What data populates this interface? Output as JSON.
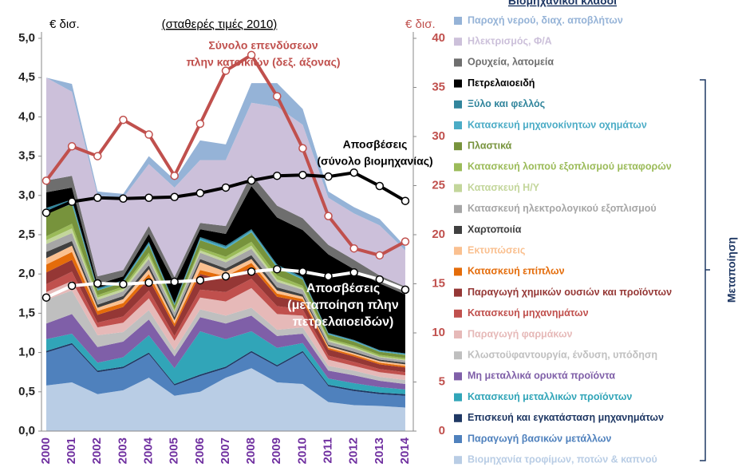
{
  "chart_data": {
    "type": "stacked-area",
    "legend_title": "Βιομηχανικοί κλάδοι",
    "subtitle": "(σταθερές τιμές 2010)",
    "y_label": "€ δισ.",
    "y2_label": "€ δισ.",
    "bracket_label": "Μεταποίηση",
    "categories": [
      "2000",
      "2001",
      "2002",
      "2003",
      "2004",
      "2005",
      "2006",
      "2007",
      "2008",
      "2009",
      "2010",
      "2011",
      "2012",
      "2013",
      "2014"
    ],
    "ylim": [
      0,
      5
    ],
    "yticks": [
      {
        "value": 0,
        "label": "0,0"
      },
      {
        "value": 0.5,
        "label": "0,5"
      },
      {
        "value": 1,
        "label": "1,0"
      },
      {
        "value": 1.5,
        "label": "1,5"
      },
      {
        "value": 2,
        "label": "2,0"
      },
      {
        "value": 2.5,
        "label": "2,5"
      },
      {
        "value": 3,
        "label": "3,0"
      },
      {
        "value": 3.5,
        "label": "3,5"
      },
      {
        "value": 4,
        "label": "4,0"
      },
      {
        "value": 4.5,
        "label": "4,5"
      },
      {
        "value": 5,
        "label": "5,0"
      }
    ],
    "y2lim": [
      0,
      40
    ],
    "y2ticks": [
      0,
      5,
      10,
      15,
      20,
      25,
      30,
      35,
      40
    ],
    "series": [
      {
        "name": "Παροχή νερού, διαχ. αποβλήτων",
        "color": "#95b3d7",
        "values": [
          0.0,
          0.1,
          0.05,
          0.05,
          0.1,
          0.1,
          0.25,
          0.2,
          0.25,
          0.3,
          0.2,
          0.08,
          0.08,
          0.08,
          0.05
        ]
      },
      {
        "name": "Ηλεκτρισμός, Φ/Α",
        "color": "#ccc0da",
        "values": [
          1.31,
          1.07,
          1.03,
          0.92,
          0.79,
          1.14,
          0.8,
          0.84,
          0.91,
          1.26,
          1.19,
          0.6,
          0.59,
          0.64,
          0.46
        ]
      },
      {
        "name": "Ορυχεία, λατομεία",
        "color": "#6e6e6e",
        "values": [
          0.15,
          0.15,
          0.1,
          0.08,
          0.1,
          0.08,
          0.08,
          0.1,
          0.15,
          0.15,
          0.15,
          0.12,
          0.12,
          0.1,
          0.1
        ]
      },
      {
        "name": "Πετρελαιοειδή",
        "color": "#000000",
        "values": [
          0.2,
          0.15,
          0.05,
          0.05,
          0.1,
          0.25,
          0.1,
          0.15,
          0.55,
          0.6,
          0.6,
          1.0,
          0.9,
          0.85,
          0.75
        ]
      },
      {
        "name": "Ξύλο και φελλός",
        "color": "#31859c",
        "values": [
          0.03,
          0.03,
          0.02,
          0.02,
          0.02,
          0.02,
          0.02,
          0.02,
          0.02,
          0.02,
          0.02,
          0.01,
          0.01,
          0.01,
          0.01
        ]
      },
      {
        "name": "Κατασκευή μηχανοκίνητων οχημάτων",
        "color": "#4bacc6",
        "values": [
          0.03,
          0.03,
          0.01,
          0.01,
          0.02,
          0.01,
          0.02,
          0.02,
          0.02,
          0.02,
          0.01,
          0.01,
          0.01,
          0.01,
          0.01
        ]
      },
      {
        "name": "Πλαστικά",
        "color": "#77933c",
        "values": [
          0.3,
          0.25,
          0.06,
          0.05,
          0.1,
          0.05,
          0.1,
          0.1,
          0.12,
          0.1,
          0.08,
          0.05,
          0.05,
          0.04,
          0.04
        ]
      },
      {
        "name": "Κατασκευή λοιπού εξοπλισμού μεταφορών",
        "color": "#9bbb59",
        "values": [
          0.05,
          0.06,
          0.03,
          0.03,
          0.04,
          0.02,
          0.03,
          0.04,
          0.05,
          0.05,
          0.03,
          0.02,
          0.02,
          0.02,
          0.02
        ]
      },
      {
        "name": "Κατασκευή Η/Υ",
        "color": "#c3d69b",
        "values": [
          0.05,
          0.06,
          0.03,
          0.03,
          0.04,
          0.02,
          0.03,
          0.03,
          0.04,
          0.03,
          0.02,
          0.02,
          0.02,
          0.01,
          0.01
        ]
      },
      {
        "name": "Κατασκευή ηλεκτρολογικού εξοπλισμού",
        "color": "#a6a6a6",
        "values": [
          0.1,
          0.1,
          0.06,
          0.06,
          0.08,
          0.06,
          0.08,
          0.08,
          0.08,
          0.07,
          0.06,
          0.04,
          0.04,
          0.03,
          0.03
        ]
      },
      {
        "name": "Χαρτοποιία",
        "color": "#404040",
        "values": [
          0.08,
          0.06,
          0.04,
          0.04,
          0.05,
          0.04,
          0.04,
          0.04,
          0.05,
          0.04,
          0.03,
          0.02,
          0.02,
          0.02,
          0.02
        ]
      },
      {
        "name": "Εκτυπώσεις",
        "color": "#fac090",
        "values": [
          0.08,
          0.08,
          0.04,
          0.05,
          0.06,
          0.04,
          0.1,
          0.06,
          0.05,
          0.04,
          0.03,
          0.02,
          0.02,
          0.02,
          0.02
        ]
      },
      {
        "name": "Κατασκευή επίπλων",
        "color": "#e46c0a",
        "values": [
          0.1,
          0.1,
          0.05,
          0.05,
          0.06,
          0.04,
          0.05,
          0.05,
          0.05,
          0.04,
          0.03,
          0.02,
          0.02,
          0.02,
          0.02
        ]
      },
      {
        "name": "Παραγωγή χημικών ουσιών και προϊόντων",
        "color": "#953735",
        "values": [
          0.15,
          0.15,
          0.1,
          0.12,
          0.15,
          0.12,
          0.2,
          0.15,
          0.15,
          0.12,
          0.1,
          0.08,
          0.07,
          0.06,
          0.06
        ]
      },
      {
        "name": "Κατασκευή μηχανημάτων",
        "color": "#c0504d",
        "values": [
          0.1,
          0.12,
          0.06,
          0.08,
          0.1,
          0.06,
          0.1,
          0.12,
          0.12,
          0.1,
          0.08,
          0.05,
          0.05,
          0.04,
          0.04
        ]
      },
      {
        "name": "Παραγωγή φαρμάκων",
        "color": "#e6b9b8",
        "values": [
          0.1,
          0.12,
          0.1,
          0.12,
          0.15,
          0.12,
          0.15,
          0.18,
          0.25,
          0.2,
          0.15,
          0.08,
          0.06,
          0.06,
          0.06
        ]
      },
      {
        "name": "Κλωστοϋφαντουργία, ένδυση, υπόδηση",
        "color": "#bfbfbf",
        "values": [
          0.3,
          0.3,
          0.15,
          0.12,
          0.12,
          0.08,
          0.1,
          0.1,
          0.1,
          0.08,
          0.08,
          0.06,
          0.06,
          0.05,
          0.05
        ]
      },
      {
        "name": "Μη μεταλλικά ορυκτά προϊόντα",
        "color": "#7f5fa8",
        "values": [
          0.2,
          0.25,
          0.2,
          0.2,
          0.2,
          0.15,
          0.18,
          0.2,
          0.2,
          0.15,
          0.12,
          0.1,
          0.1,
          0.08,
          0.07
        ]
      },
      {
        "name": "Κατασκευή μεταλλικών προϊόντων",
        "color": "#31a5b8",
        "values": [
          0.15,
          0.12,
          0.1,
          0.12,
          0.22,
          0.2,
          0.55,
          0.35,
          0.25,
          0.22,
          0.1,
          0.08,
          0.08,
          0.07,
          0.06
        ]
      },
      {
        "name": "Επισκευή και εγκατάσταση μηχανημάτων",
        "color": "#1f3864",
        "values": [
          0.02,
          0.02,
          0.02,
          0.02,
          0.02,
          0.02,
          0.02,
          0.02,
          0.02,
          0.02,
          0.02,
          0.02,
          0.02,
          0.02,
          0.02
        ]
      },
      {
        "name": "Παραγωγή βασικών μετάλλων",
        "color": "#4f81bd",
        "values": [
          0.42,
          0.48,
          0.28,
          0.28,
          0.3,
          0.13,
          0.2,
          0.12,
          0.2,
          0.2,
          0.4,
          0.2,
          0.18,
          0.15,
          0.15
        ]
      },
      {
        "name": "Βιομηχανία τροφίμων, ποτών & καπνού",
        "color": "#b9cde5",
        "values": [
          0.58,
          0.62,
          0.47,
          0.52,
          0.68,
          0.45,
          0.5,
          0.68,
          0.8,
          0.62,
          0.6,
          0.37,
          0.33,
          0.32,
          0.3
        ]
      }
    ],
    "lines": [
      {
        "label": [
          "Σύνολο επενδύσεων",
          "πλην κατοικιών (δεξ. άξονας)"
        ],
        "color": "#c0504d",
        "axis": "y2",
        "values": [
          25.5,
          29,
          28,
          31.7,
          30.2,
          26,
          31.3,
          36.7,
          38.3,
          34.1,
          28.8,
          21.9,
          18.6,
          17.9,
          19.3
        ]
      },
      {
        "label": [
          "Αποσβέσεις",
          "(σύνολο βιομηχανίας)"
        ],
        "color": "#000000",
        "values": [
          2.78,
          2.92,
          2.97,
          2.96,
          2.97,
          2.98,
          3.03,
          3.1,
          3.19,
          3.25,
          3.26,
          3.24,
          3.29,
          3.12,
          2.93
        ]
      },
      {
        "label": [
          "Αποσβέσεις",
          "(μεταποίηση πλην",
          "πετρελαιοειδών)"
        ],
        "color": "#ffffff",
        "values": [
          1.7,
          1.85,
          1.88,
          1.87,
          1.89,
          1.9,
          1.92,
          1.97,
          2.03,
          2.06,
          2.03,
          1.97,
          2.02,
          1.93,
          1.8
        ]
      }
    ]
  }
}
